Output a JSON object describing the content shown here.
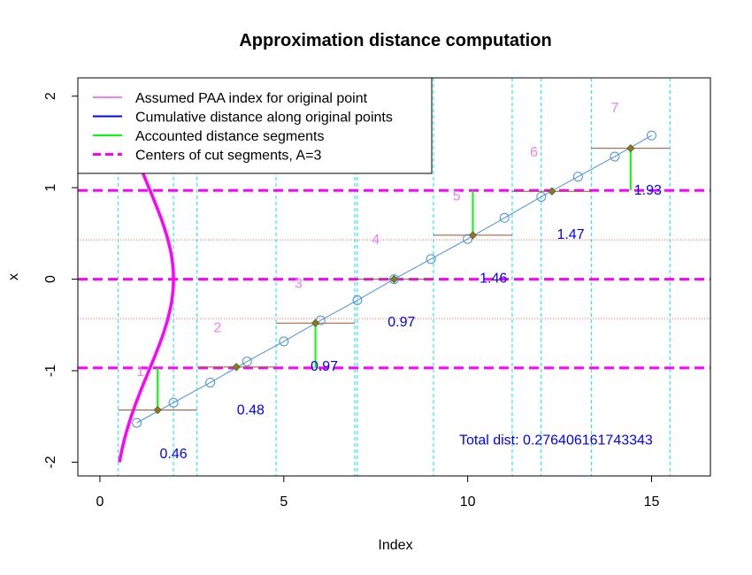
{
  "chart_data": {
    "type": "line",
    "title": "Approximation distance computation",
    "xlabel": "Index",
    "ylabel": "x",
    "xlim": [
      -0.6,
      16.6
    ],
    "ylim": [
      -2.15,
      2.2
    ],
    "xticks": [
      0,
      5,
      10,
      15
    ],
    "yticks": [
      -2,
      -1,
      0,
      1,
      2
    ],
    "grid": false,
    "legend_position": "top-left",
    "legend": [
      {
        "label": "Assumed PAA index for original point",
        "color": "#ee82ee",
        "style": "solid"
      },
      {
        "label": "Cumulative distance along original points",
        "color": "#0000ff",
        "style": "solid"
      },
      {
        "label": "Accounted distance segments",
        "color": "#00ff00",
        "style": "solid"
      },
      {
        "label": "Centers of cut segments, A=3",
        "color": "#ff00ff",
        "style": "dashed"
      }
    ],
    "original_points": {
      "x": [
        1,
        2,
        3,
        4,
        5,
        6,
        7,
        8,
        9,
        10,
        11,
        12,
        13,
        14,
        15
      ],
      "y": [
        -1.57,
        -1.35,
        -1.13,
        -0.9,
        -0.68,
        -0.45,
        -0.23,
        0.0,
        0.22,
        0.44,
        0.67,
        0.9,
        1.12,
        1.34,
        1.57
      ]
    },
    "interpolated_points": {
      "x": [
        1.57,
        3.71,
        5.86,
        8.0,
        10.14,
        12.29,
        14.43
      ],
      "y": [
        -1.43,
        -0.96,
        -0.48,
        0.0,
        0.48,
        0.96,
        1.43
      ]
    },
    "paa_segments": [
      {
        "x0": 0.5,
        "x1": 2.64,
        "y": -1.43
      },
      {
        "x0": 2.64,
        "x1": 4.79,
        "y": -0.96
      },
      {
        "x0": 4.79,
        "x1": 6.93,
        "y": -0.48
      },
      {
        "x0": 6.93,
        "x1": 9.07,
        "y": 0.0
      },
      {
        "x0": 9.07,
        "x1": 11.21,
        "y": 0.48
      },
      {
        "x0": 11.21,
        "x1": 13.36,
        "y": 0.96
      },
      {
        "x0": 13.36,
        "x1": 15.5,
        "y": 1.43
      }
    ],
    "segment_boundaries": [
      0.5,
      2.64,
      4.79,
      6.93,
      9.07,
      11.21,
      13.36,
      15.5
    ],
    "extra_vlines": [
      2.0,
      7.0,
      12.0
    ],
    "breakpoints": [
      -0.43,
      0.43
    ],
    "cut_centers": [
      -0.97,
      0.0,
      0.97
    ],
    "accounted_segments": [
      {
        "x": 1.57,
        "y0": -1.43,
        "y1": -0.97
      },
      {
        "x": 5.86,
        "y0": -0.48,
        "y1": -0.97
      },
      {
        "x": 10.14,
        "y0": 0.48,
        "y1": 0.97
      },
      {
        "x": 14.43,
        "y0": 1.43,
        "y1": 0.97
      }
    ],
    "paa_index_labels": [
      {
        "text": "1",
        "x": 1.1,
        "y": -1.0
      },
      {
        "text": "2",
        "x": 3.2,
        "y": -0.52
      },
      {
        "text": "3",
        "x": 5.4,
        "y": -0.04
      },
      {
        "text": "4",
        "x": 7.5,
        "y": 0.44
      },
      {
        "text": "5",
        "x": 9.7,
        "y": 0.92
      },
      {
        "text": "6",
        "x": 11.8,
        "y": 1.4
      },
      {
        "text": "7",
        "x": 14.0,
        "y": 1.88
      }
    ],
    "distance_labels": [
      {
        "text": "0.46",
        "x": 2.0,
        "y": -1.9
      },
      {
        "text": "0.48",
        "x": 4.1,
        "y": -1.42
      },
      {
        "text": "0.97",
        "x": 6.1,
        "y": -0.94
      },
      {
        "text": "0.97",
        "x": 8.2,
        "y": -0.46
      },
      {
        "text": "1.46",
        "x": 10.7,
        "y": 0.02
      },
      {
        "text": "1.47",
        "x": 12.8,
        "y": 0.5
      },
      {
        "text": "1.93",
        "x": 14.9,
        "y": 0.98
      }
    ],
    "total_label": {
      "text": "Total dist: 0.276406161743343",
      "x": 12.4,
      "y": -1.75
    },
    "colors": {
      "original": "#4a90e2",
      "paa": "#a0522d",
      "boundary": "#00e5ee",
      "breakpoint": "#ff6347",
      "cut_center": "#ff00ff",
      "accounted": "#00ff00",
      "index_label": "#ee82ee",
      "distance_label": "#0000ff",
      "interp_fill": "#b5651d",
      "density": "#ff00ff"
    }
  }
}
